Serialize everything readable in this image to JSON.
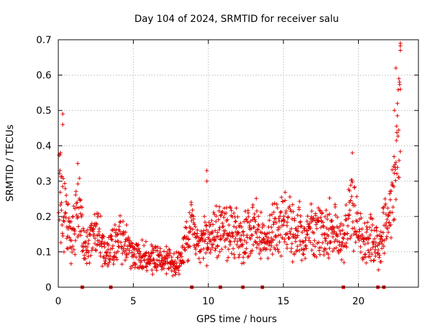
{
  "chart_data": {
    "type": "scatter",
    "title": "Day 104 of 2024, SRMTID for receiver salu",
    "xlabel": "GPS time / hours",
    "ylabel": "SRMTID / TECUs",
    "xlim": [
      0,
      24
    ],
    "ylim": [
      0,
      0.7
    ],
    "x_ticks": [
      0,
      5,
      10,
      15,
      20
    ],
    "x_tick_labels": [
      "0",
      "5",
      "10",
      "15",
      "20"
    ],
    "y_ticks": [
      0,
      0.1,
      0.2,
      0.3,
      0.4,
      0.5,
      0.6,
      0.7
    ],
    "y_tick_labels": [
      "0",
      "0.1",
      "0.2",
      "0.3",
      "0.4",
      "0.5",
      "0.6",
      "0.7"
    ],
    "grid": true,
    "marker": "plus",
    "color": "#e00000",
    "trend": [
      [
        0.0,
        0.3
      ],
      [
        0.3,
        0.22
      ],
      [
        0.6,
        0.17
      ],
      [
        0.9,
        0.13
      ],
      [
        1.2,
        0.19
      ],
      [
        1.4,
        0.26
      ],
      [
        1.6,
        0.14
      ],
      [
        1.9,
        0.12
      ],
      [
        2.2,
        0.13
      ],
      [
        2.5,
        0.17
      ],
      [
        2.8,
        0.14
      ],
      [
        3.1,
        0.1
      ],
      [
        3.4,
        0.11
      ],
      [
        3.8,
        0.13
      ],
      [
        4.2,
        0.13
      ],
      [
        4.6,
        0.11
      ],
      [
        5.0,
        0.1
      ],
      [
        5.4,
        0.09
      ],
      [
        5.8,
        0.08
      ],
      [
        6.2,
        0.09
      ],
      [
        6.6,
        0.08
      ],
      [
        7.0,
        0.08
      ],
      [
        7.4,
        0.07
      ],
      [
        7.8,
        0.06
      ],
      [
        8.2,
        0.08
      ],
      [
        8.6,
        0.14
      ],
      [
        8.9,
        0.19
      ],
      [
        9.1,
        0.14
      ],
      [
        9.4,
        0.1
      ],
      [
        9.7,
        0.13
      ],
      [
        10.0,
        0.14
      ],
      [
        10.4,
        0.15
      ],
      [
        10.8,
        0.17
      ],
      [
        11.2,
        0.18
      ],
      [
        11.6,
        0.16
      ],
      [
        12.0,
        0.15
      ],
      [
        12.4,
        0.14
      ],
      [
        12.8,
        0.15
      ],
      [
        13.2,
        0.17
      ],
      [
        13.6,
        0.14
      ],
      [
        14.0,
        0.15
      ],
      [
        14.4,
        0.16
      ],
      [
        14.8,
        0.19
      ],
      [
        15.2,
        0.18
      ],
      [
        15.6,
        0.17
      ],
      [
        16.0,
        0.16
      ],
      [
        16.4,
        0.15
      ],
      [
        16.8,
        0.17
      ],
      [
        17.2,
        0.16
      ],
      [
        17.6,
        0.15
      ],
      [
        18.0,
        0.17
      ],
      [
        18.4,
        0.16
      ],
      [
        18.7,
        0.12
      ],
      [
        19.0,
        0.13
      ],
      [
        19.3,
        0.19
      ],
      [
        19.6,
        0.25
      ],
      [
        19.8,
        0.19
      ],
      [
        20.1,
        0.14
      ],
      [
        20.4,
        0.13
      ],
      [
        20.8,
        0.14
      ],
      [
        21.1,
        0.12
      ],
      [
        21.4,
        0.11
      ],
      [
        21.7,
        0.17
      ],
      [
        22.0,
        0.2
      ],
      [
        22.3,
        0.27
      ],
      [
        22.6,
        0.4
      ],
      [
        22.8,
        0.46
      ]
    ],
    "highlights": [
      [
        0.3,
        0.49
      ],
      [
        0.3,
        0.46
      ],
      [
        0.15,
        0.38
      ],
      [
        1.3,
        0.35
      ],
      [
        9.9,
        0.33
      ],
      [
        9.9,
        0.3
      ],
      [
        19.6,
        0.38
      ],
      [
        22.5,
        0.62
      ],
      [
        22.8,
        0.69
      ],
      [
        22.8,
        0.67
      ],
      [
        22.7,
        0.59
      ],
      [
        22.8,
        0.56
      ],
      [
        22.6,
        0.52
      ],
      [
        22.4,
        0.5
      ]
    ],
    "zero_markers": [
      1.6,
      3.5,
      8.9,
      10.8,
      12.3,
      13.6,
      19.0,
      21.3,
      21.7
    ]
  }
}
